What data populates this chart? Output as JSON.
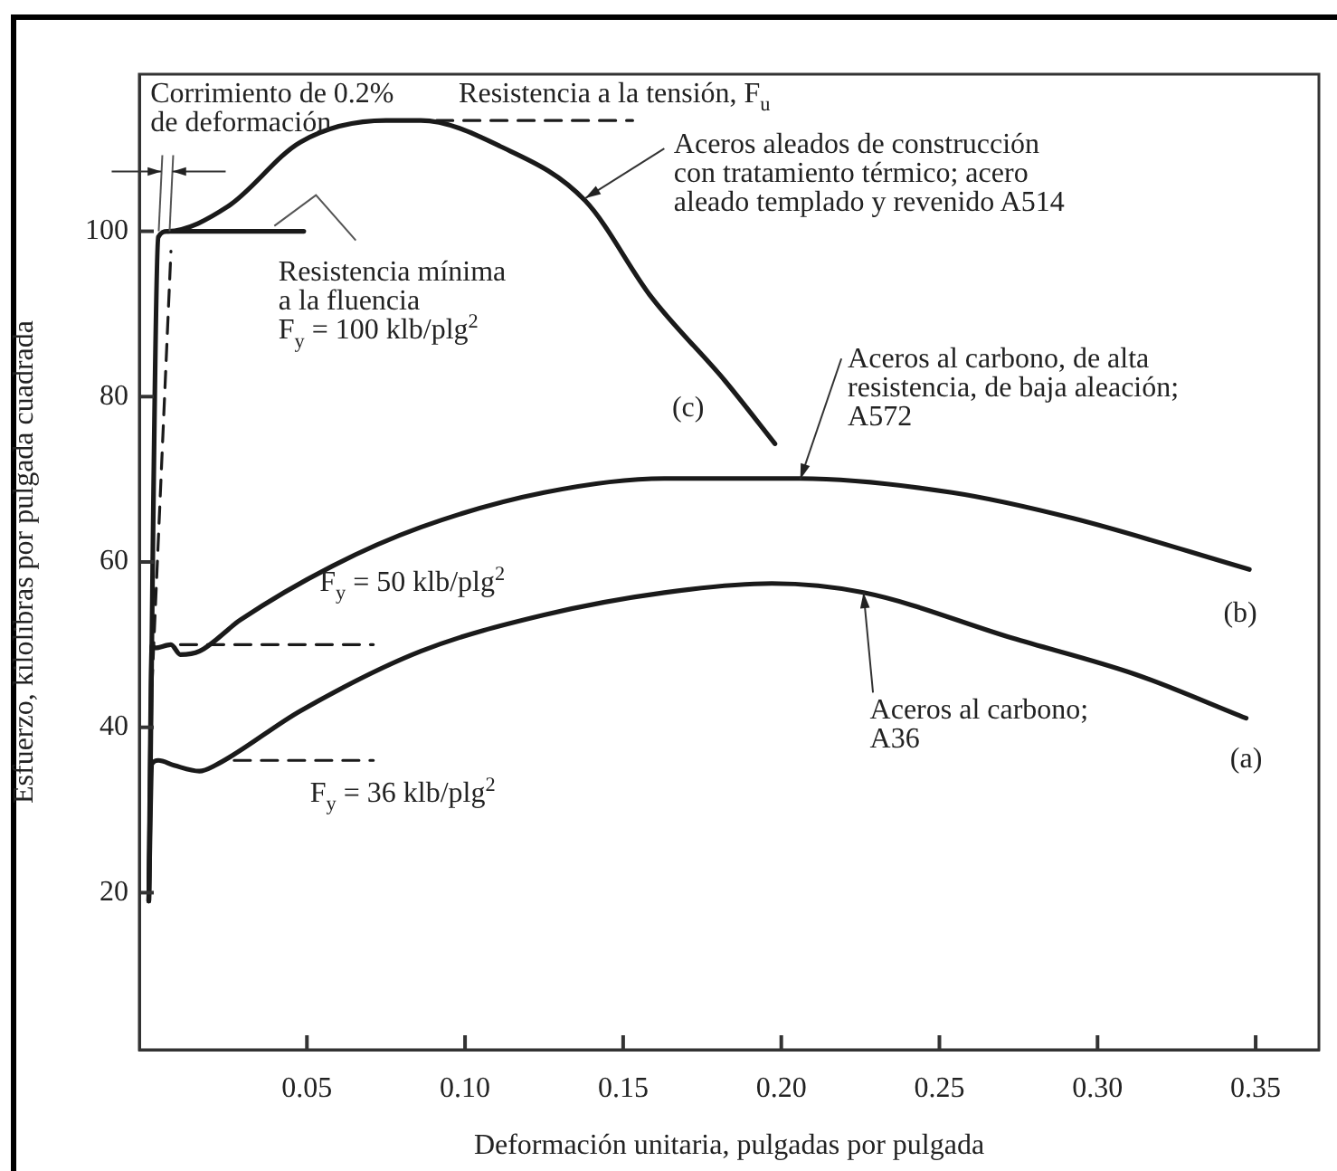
{
  "chart_data": {
    "type": "line",
    "xlabel": "Deformación unitaria, pulgadas por pulgada",
    "ylabel": "Esfuerzo, kilolibras por pulgada cuadrada",
    "xlim": [
      -0.003,
      0.37
    ],
    "ylim": [
      1,
      119
    ],
    "xticks": [
      0.05,
      {
        "value": 0.1,
        "label": "0.10"
      },
      0.15,
      {
        "value": 0.2,
        "label": "0.20"
      },
      0.25,
      {
        "value": 0.3,
        "label": "0.30"
      },
      0.35
    ],
    "yticks": [
      20,
      40,
      60,
      80,
      100
    ],
    "grid": false,
    "marker": "none",
    "line_style": "solid",
    "series": [
      {
        "name": "(a)",
        "color": "#1a1a1a",
        "x": [
          0,
          0.001,
          0.003,
          0.008,
          0.016,
          0.021,
          0.048,
          0.086,
          0.125,
          0.163,
          0.197,
          0.226,
          0.273,
          0.312,
          0.347
        ],
        "values": [
          19,
          35.6,
          36,
          35.4,
          34.7,
          35.4,
          42,
          49.2,
          53.6,
          56.3,
          57.4,
          56.3,
          50.8,
          46.4,
          41.1
        ]
      },
      {
        "name": "(b)",
        "color": "#1a1a1a",
        "x": [
          0,
          0.001,
          0.002,
          0.007,
          0.01,
          0.016,
          0.029,
          0.058,
          0.086,
          0.125,
          0.163,
          0.206,
          0.254,
          0.292,
          0.348
        ],
        "values": [
          19,
          49.9,
          49.6,
          50,
          48.8,
          49.2,
          53,
          59.5,
          64.2,
          68.4,
          70.1,
          70.1,
          68.4,
          65.3,
          59.1
        ]
      },
      {
        "name": "(c)",
        "color": "#1a1a1a",
        "x": [
          0,
          0.003,
          0.006,
          0.025,
          0.048,
          0.075,
          0.086,
          0.111,
          0.138,
          0.159,
          0.182,
          0.198
        ],
        "values": [
          19,
          99.3,
          100,
          103,
          110.8,
          113.4,
          113.4,
          110.3,
          103.7,
          92,
          82,
          74.3
        ]
      },
      {
        "color": "#1a1a1a",
        "x": [
          0.006,
          0.049
        ],
        "values": [
          100,
          100
        ]
      },
      {
        "color": "#1a1a1a",
        "line_style": "dashed",
        "x": [
          0.001,
          0.007
        ],
        "values": [
          45,
          97.6
        ]
      },
      {
        "color": "#1a1a1a",
        "line_style": "dashed",
        "x": [
          0.091,
          0.153
        ],
        "values": [
          113.4,
          113.4
        ]
      },
      {
        "color": "#1a1a1a",
        "line_style": "dashed",
        "x": [
          0.01,
          0.071
        ],
        "values": [
          50,
          50
        ]
      },
      {
        "color": "#1a1a1a",
        "line_style": "dashed",
        "x": [
          0.027,
          0.071
        ],
        "values": [
          36,
          36
        ]
      }
    ],
    "annotations": [
      {
        "text": "Corrimiento de 0.2%\nde deformación",
        "x": 0.006,
        "y": 100
      },
      {
        "text": "Resistencia a la tensión, F$_{u}$",
        "x": 0.12,
        "y": 113.4
      },
      {
        "text": "Aceros aleados de construcción\ncon tratamiento térmico; acero\naleado templado y revenido A514",
        "x": 0.138,
        "y": 104
      },
      {
        "text": "Resistencia mínima\na la fluencia\nF$_{y}$ = 100 klb/plg$^{2}$",
        "x": 0.05,
        "y": 100
      },
      {
        "text": "Aceros al carbono, de alta\nresistencia, de baja aleación;\nA572",
        "x": 0.206,
        "y": 70
      },
      {
        "text": "F$_{y}$ = 50 klb/plg$^{2}$",
        "x": 0.05,
        "y": 50
      },
      {
        "text": "F$_{y}$ = 36 klb/plg$^{2}$",
        "x": 0.05,
        "y": 36
      },
      {
        "text": "Aceros al carbono;\nA36",
        "x": 0.226,
        "y": 56.3
      }
    ]
  }
}
